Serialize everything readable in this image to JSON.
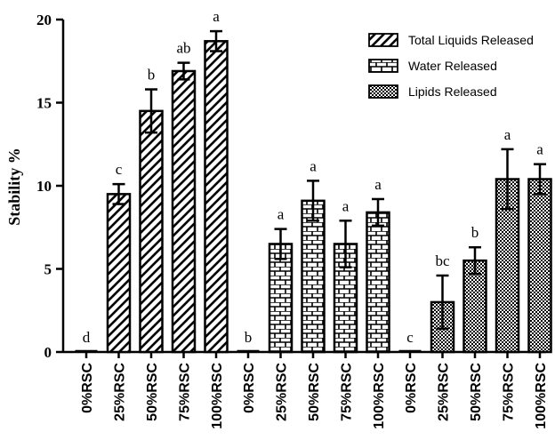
{
  "chart_data": {
    "type": "bar",
    "ylabel": "Stability %",
    "ylim": [
      0,
      20
    ],
    "yticks": [
      "0",
      "5",
      "10",
      "15",
      "20"
    ],
    "legend_position": "top-right",
    "groups": [
      {
        "name": "Total Liquids Released",
        "pattern": "diagonal",
        "categories": [
          "0%RSC",
          "25%RSC",
          "50%RSC",
          "75%RSC",
          "100%RSC"
        ],
        "values": [
          0,
          9.5,
          14.5,
          16.9,
          18.7
        ],
        "errors": [
          0,
          0.6,
          1.3,
          0.5,
          0.6
        ],
        "letters": [
          "d",
          "c",
          "b",
          "ab",
          "a"
        ]
      },
      {
        "name": "Water Released",
        "pattern": "brick",
        "categories": [
          "0%RSC",
          "25%RSC",
          "50%RSC",
          "75%RSC",
          "100%RSC"
        ],
        "values": [
          0,
          6.5,
          9.1,
          6.5,
          8.4
        ],
        "errors": [
          0,
          0.9,
          1.2,
          1.4,
          0.8
        ],
        "letters": [
          "b",
          "a",
          "a",
          "a",
          "a"
        ]
      },
      {
        "name": "Lipids Released",
        "pattern": "checker",
        "categories": [
          "0%RSC",
          "25%RSC",
          "50%RSC",
          "75%RSC",
          "100%RSC"
        ],
        "values": [
          0,
          3.0,
          5.5,
          10.4,
          10.4
        ],
        "errors": [
          0,
          1.6,
          0.8,
          1.8,
          0.9
        ],
        "letters": [
          "c",
          "bc",
          "b",
          "a",
          "a"
        ]
      }
    ]
  }
}
